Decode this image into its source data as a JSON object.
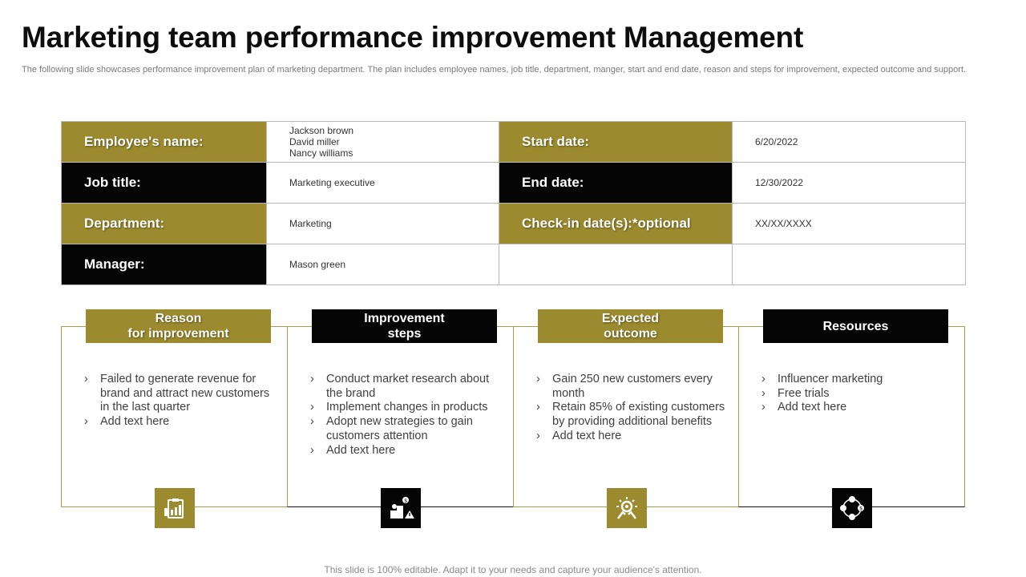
{
  "title": "Marketing team performance improvement Management",
  "subtitle": "The following slide showcases performance improvement plan of marketing department. The plan includes employee names, job title, department, manger, start and end date,  reason and steps for improvement, expected outcome and support.",
  "info": {
    "employee_label": "Employee's name:",
    "employee_names": [
      "Jackson brown",
      "David miller",
      "Nancy williams"
    ],
    "start_label": "Start date:",
    "start_value": "6/20/2022",
    "job_label": "Job title:",
    "job_value": "Marketing executive",
    "end_label": "End date:",
    "end_value": "12/30/2022",
    "dept_label": "Department:",
    "dept_value": "Marketing",
    "checkin_label": "Check-in date(s):*optional",
    "checkin_value": "XX/XX/XXXX",
    "manager_label": "Manager:",
    "manager_value": "Mason green"
  },
  "cards": [
    {
      "title": "Reason\nfor improvement",
      "bullets": [
        "Failed to generate revenue for brand and attract new customers in the last quarter",
        "Add text here"
      ],
      "icon": "clipboard-chart-icon"
    },
    {
      "title": "Improvement\nsteps",
      "bullets": [
        "Conduct market research about the brand",
        "Implement changes in products",
        "Adopt new strategies to gain customers attention",
        "Add text here"
      ],
      "icon": "steps-dollar-icon"
    },
    {
      "title": "Expected\noutcome",
      "bullets": [
        "Gain 250 new customers every month",
        "Retain 85% of existing customers by providing additional benefits",
        "Add text here"
      ],
      "icon": "idea-gear-icon"
    },
    {
      "title": "Resources",
      "bullets": [
        "Influencer marketing",
        "Free trials",
        "Add text here"
      ],
      "icon": "resource-network-icon"
    }
  ],
  "footer": "This slide is 100% editable. Adapt it to your needs and capture your audience's attention.",
  "colors": {
    "gold": "#9c8b2e",
    "black": "#050505"
  }
}
